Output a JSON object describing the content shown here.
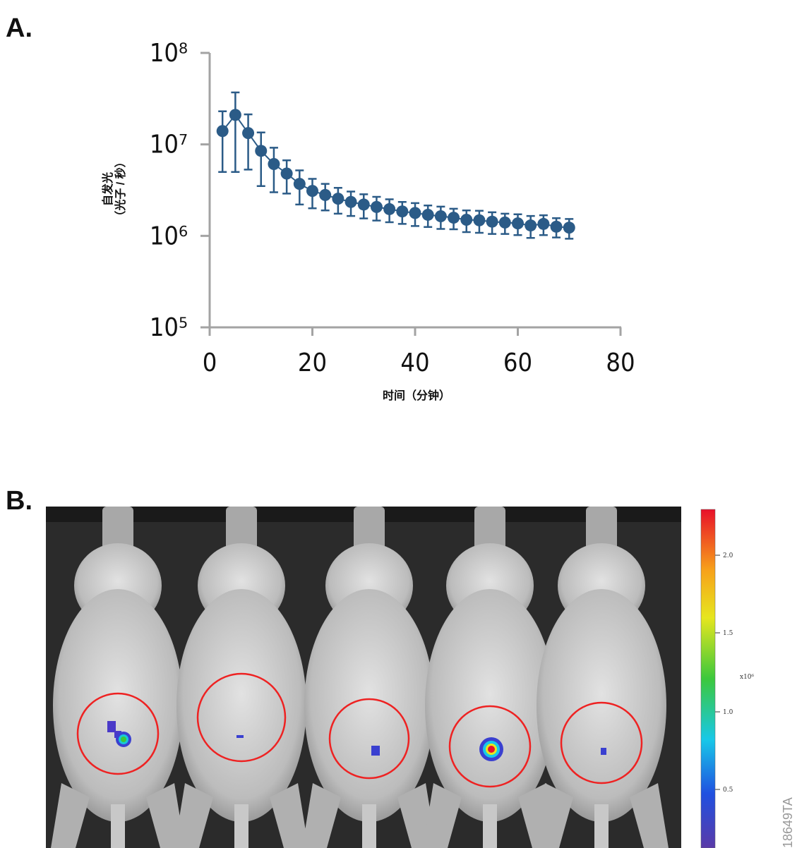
{
  "panel_labels": [
    "A.",
    "B."
  ],
  "chart_data": {
    "type": "scatter",
    "xlabel": "时间（分钟）",
    "ylabel": [
      "自发光",
      "（光子 / 秒）"
    ],
    "xlim": [
      0,
      80
    ],
    "xticks": [
      0,
      20,
      40,
      60,
      80
    ],
    "ylim": [
      100000,
      100000000
    ],
    "ylog": true,
    "yticks": [
      {
        "value": 100000,
        "label": "10⁵"
      },
      {
        "value": 1000000,
        "label": "10⁶"
      },
      {
        "value": 10000000,
        "label": "10⁷"
      },
      {
        "value": 100000000,
        "label": "10⁸"
      }
    ],
    "series": [
      {
        "color": "#2b5b87",
        "x": [
          2.5,
          5,
          7.5,
          10,
          12.5,
          15,
          17.5,
          20,
          22.5,
          25,
          27.5,
          30,
          32.5,
          35,
          37.5,
          40,
          42.5,
          45,
          47.5,
          50,
          52.5,
          55,
          57.5,
          60,
          62.5,
          65,
          67.5,
          70
        ],
        "values": [
          14000000,
          21000000,
          13300000,
          8500000,
          6100000,
          4800000,
          3700000,
          3100000,
          2800000,
          2550000,
          2350000,
          2200000,
          2070000,
          1960000,
          1850000,
          1780000,
          1700000,
          1640000,
          1580000,
          1500000,
          1480000,
          1430000,
          1400000,
          1370000,
          1300000,
          1350000,
          1260000,
          1230000
        ],
        "errors": [
          9000000,
          16000000,
          8000000,
          5000000,
          3100000,
          1900000,
          1500000,
          1100000,
          900000,
          800000,
          700000,
          650000,
          600000,
          550000,
          500000,
          500000,
          450000,
          450000,
          400000,
          400000,
          400000,
          380000,
          350000,
          350000,
          350000,
          330000,
          300000,
          300000
        ]
      }
    ]
  },
  "image_panel": {
    "colorbar": {
      "ticks": [
        "2.0",
        "1.5",
        "1.0",
        "0.5"
      ],
      "unit": "x10⁶"
    },
    "figure_id": "18649TA"
  }
}
